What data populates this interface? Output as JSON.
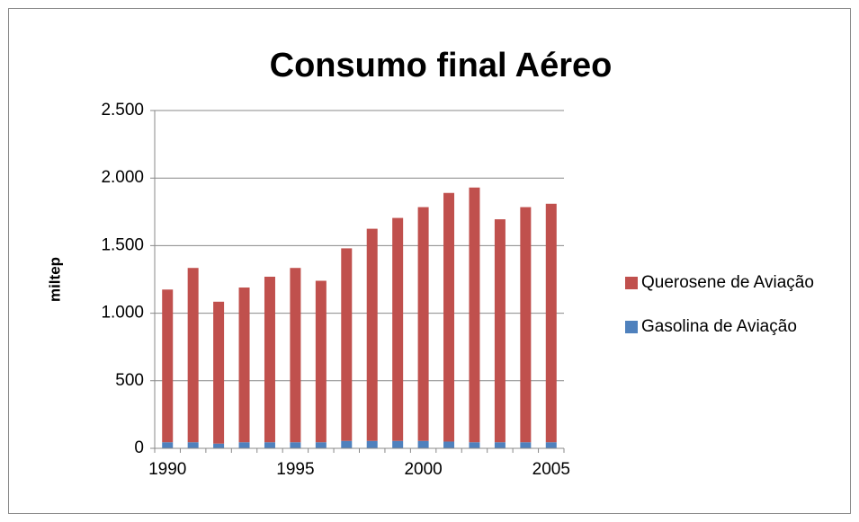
{
  "chart_data": {
    "type": "stacked_bar",
    "title": "Consumo final Aéreo",
    "y_label": "miltep",
    "categories": [
      "1990",
      null,
      null,
      null,
      null,
      "1995",
      null,
      null,
      null,
      null,
      "2000",
      null,
      null,
      null,
      null,
      "2005"
    ],
    "series": [
      {
        "name": "Gasolina de Aviação",
        "color": "#4f81bd",
        "values": [
          45,
          45,
          35,
          45,
          45,
          45,
          45,
          55,
          55,
          55,
          55,
          50,
          45,
          45,
          45,
          45
        ]
      },
      {
        "name": "Querosene de Aviação",
        "color": "#c0504d",
        "values": [
          1130,
          1290,
          1050,
          1145,
          1225,
          1290,
          1195,
          1425,
          1570,
          1650,
          1730,
          1840,
          1885,
          1650,
          1740,
          1765
        ]
      }
    ],
    "ylim": [
      0,
      2500
    ],
    "yticks": [
      0,
      500,
      {
        "value": 1000,
        "label": "1.000"
      },
      {
        "value": 1500,
        "label": "1.500"
      },
      {
        "value": 2000,
        "label": "2.000"
      },
      {
        "value": 2500,
        "label": "2.500"
      }
    ],
    "grid": true,
    "legend": "right"
  }
}
